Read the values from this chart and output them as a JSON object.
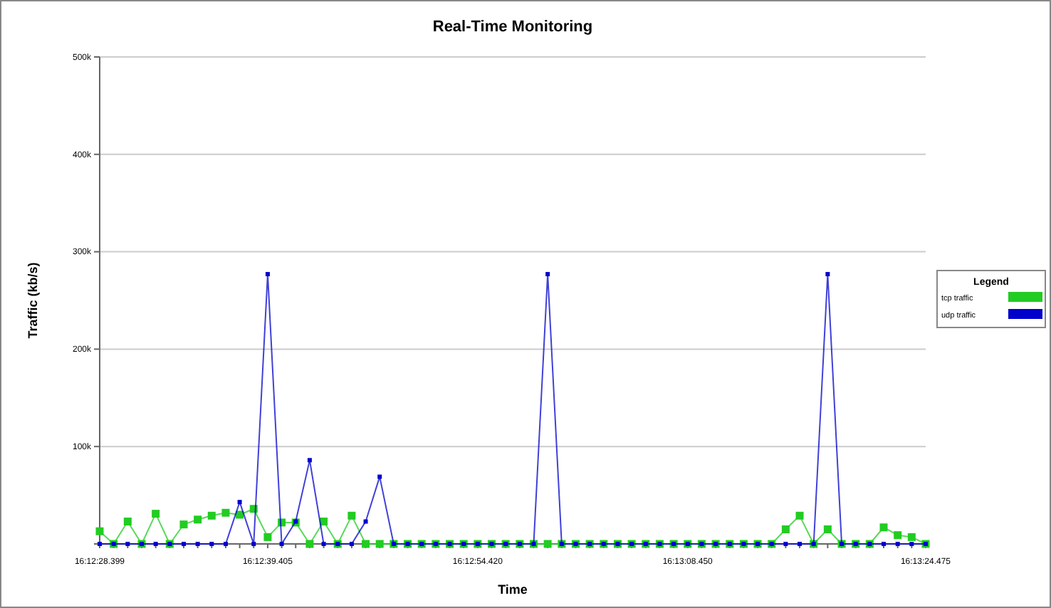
{
  "chart_data": {
    "type": "line",
    "title": "Real-Time Monitoring",
    "xlabel": "Time",
    "ylabel": "Traffic (kb/s)",
    "legend_title": "Legend",
    "categories": [
      "16:12:28.399",
      null,
      null,
      null,
      null,
      null,
      null,
      null,
      null,
      null,
      null,
      null,
      "16:12:39.405",
      null,
      null,
      null,
      null,
      null,
      null,
      null,
      null,
      null,
      null,
      null,
      null,
      null,
      null,
      "16:12:54.420",
      null,
      null,
      null,
      null,
      null,
      null,
      null,
      null,
      null,
      null,
      null,
      null,
      null,
      null,
      "16:13:08.450",
      null,
      null,
      null,
      null,
      null,
      null,
      null,
      null,
      null,
      null,
      null,
      null,
      null,
      null,
      null,
      null,
      "16:13:24.475"
    ],
    "series": [
      {
        "name": "tcp traffic",
        "color": "#22cc22",
        "values": [
          13000,
          0,
          23000,
          0,
          31000,
          0,
          20000,
          25000,
          29000,
          32000,
          30000,
          36000,
          7000,
          22000,
          22000,
          0,
          23000,
          0,
          29000,
          0,
          0,
          0,
          0,
          0,
          0,
          0,
          0,
          0,
          0,
          0,
          0,
          0,
          0,
          0,
          0,
          0,
          0,
          0,
          0,
          0,
          0,
          0,
          0,
          0,
          0,
          0,
          0,
          0,
          0,
          15000,
          29000,
          0,
          15000,
          0,
          0,
          0,
          17000,
          9000,
          7000,
          0
        ]
      },
      {
        "name": "udp traffic",
        "color": "#0000cc",
        "values": [
          0,
          0,
          0,
          0,
          0,
          0,
          0,
          0,
          0,
          0,
          43000,
          0,
          277000,
          0,
          23000,
          86000,
          0,
          0,
          0,
          23000,
          69000,
          0,
          0,
          0,
          0,
          0,
          0,
          0,
          0,
          0,
          0,
          0,
          277000,
          0,
          0,
          0,
          0,
          0,
          0,
          0,
          0,
          0,
          0,
          0,
          0,
          0,
          0,
          0,
          0,
          0,
          0,
          0,
          277000,
          0,
          0,
          0,
          0,
          0,
          0,
          0
        ]
      }
    ],
    "ylim": [
      0,
      500000
    ],
    "yticks": [
      {
        "value": 0,
        "label": null
      },
      {
        "value": 100000,
        "label": "100k"
      },
      {
        "value": 200000,
        "label": "200k"
      },
      {
        "value": 300000,
        "label": "300k"
      },
      {
        "value": 400000,
        "label": "400k"
      },
      {
        "value": 500000,
        "label": "500k"
      }
    ],
    "grid": "y",
    "legend": "right",
    "marker": "square",
    "line_style": "solid"
  }
}
